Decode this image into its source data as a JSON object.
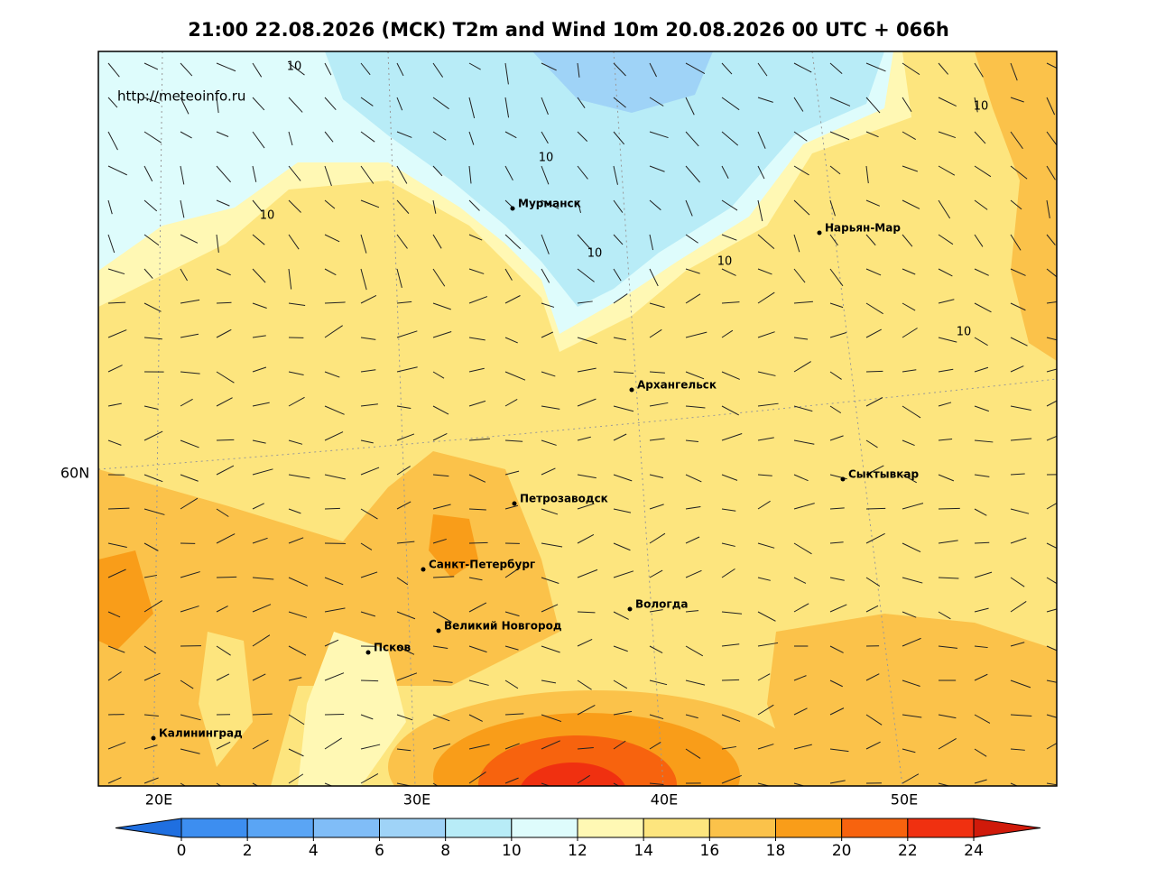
{
  "title": "21:00 22.08.2026 (MCK) T2m and Wind 10m 20.08.2026 00 UTC + 066h",
  "source": "http://meteoinfo.ru",
  "cities": [
    "Мурманск",
    "Нарьян-Мар",
    "Архангельск",
    "Сыктывкар",
    "Петрозаводск",
    "Санкт-Петербург",
    "Вологда",
    "Великий Новгород",
    "Псков",
    "Калининград"
  ],
  "contour_labels": [
    10,
    10,
    10,
    10,
    10,
    10,
    10
  ],
  "longitude_labels": [
    "20E",
    "30E",
    "40E",
    "50E"
  ],
  "latitude_labels": [
    "60N"
  ],
  "colorbar": {
    "ticks": [
      0,
      2,
      4,
      6,
      8,
      10,
      12,
      14,
      16,
      18,
      20,
      22,
      24
    ],
    "colors": [
      "#3d8ef0",
      "#5aa5f5",
      "#80bdf7",
      "#9fd3f7",
      "#b8ecf7",
      "#defcfc",
      "#fff8b4",
      "#fde57e",
      "#fbc24a",
      "#f99d19",
      "#f7630e",
      "#f03010"
    ],
    "under_color": "#1f6fe0",
    "over_color": "#d01a0a"
  }
}
